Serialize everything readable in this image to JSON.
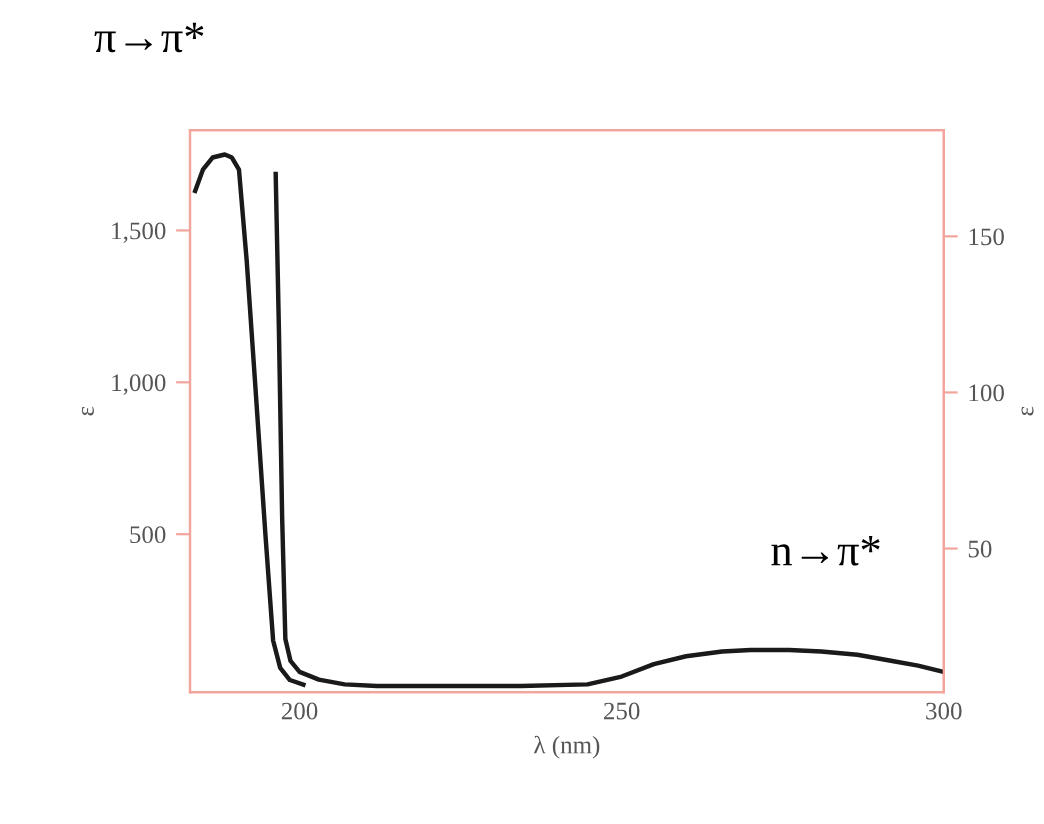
{
  "chart_data": {
    "type": "line",
    "xlabel": "λ (nm)",
    "ylabel": "ε",
    "y2label": "ε",
    "annotations": [
      "π→π*",
      "n→π*"
    ],
    "series": [
      {
        "color": "#1a1a1a",
        "x": [
          183.8,
          185,
          186.5,
          188.4,
          189.5,
          190.6,
          191.8,
          193.1,
          194.7,
          195.9,
          197,
          198.5,
          200.6
        ],
        "values": [
          1630,
          1700,
          1740,
          1750,
          1740,
          1700,
          1400,
          1000,
          500,
          150,
          60,
          20,
          5
        ]
      },
      {
        "color": "#1a1a1a",
        "axis": "y2",
        "x": [
          196.3,
          196.8,
          197.3,
          197.8,
          198.6,
          200,
          203,
          207,
          212,
          220,
          226,
          234.4,
          244.7,
          250,
          255,
          260,
          265.6,
          270,
          276,
          281,
          286.6,
          292,
          296,
          300
        ],
        "values": [
          170,
          120,
          60,
          21,
          14,
          10.5,
          8,
          6.5,
          6,
          6,
          6,
          6,
          6.5,
          9,
          13,
          15.5,
          17,
          17.5,
          17.5,
          17,
          16,
          14,
          12.5,
          10.5
        ]
      }
    ],
    "xlim": [
      183,
      300
    ],
    "xticks": [
      200,
      250,
      300
    ],
    "ylim": [
      -20,
      1830
    ],
    "yticks": [
      {
        "value": 500,
        "label": "500"
      },
      {
        "value": 1000,
        "label": "1,000"
      },
      {
        "value": 1500,
        "label": "1,500"
      }
    ],
    "y2lim": [
      4,
      184
    ],
    "y2ticks": [
      50,
      100,
      150
    ],
    "grid": false,
    "legend": false,
    "line_style": "solid"
  }
}
